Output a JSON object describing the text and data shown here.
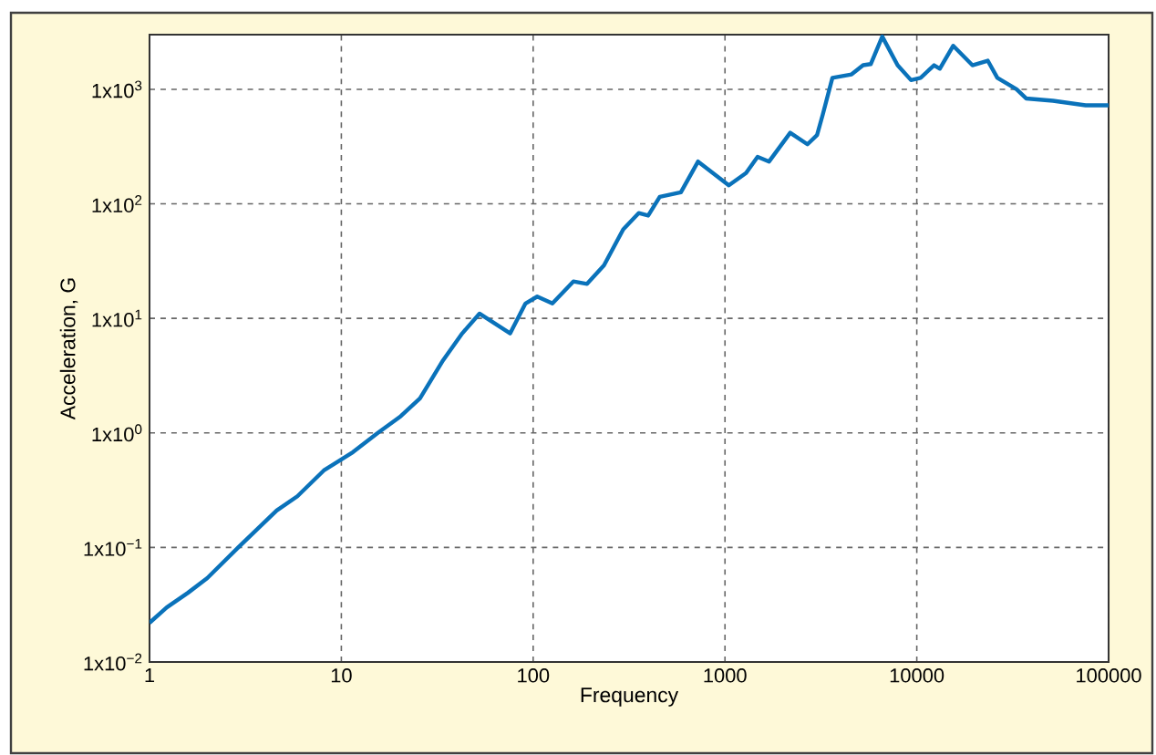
{
  "chart_data": {
    "type": "line",
    "xlabel": "Frequency",
    "ylabel": "Acceleration, G",
    "log": "xy",
    "grid": true,
    "line_style": "solid",
    "marker": "none",
    "xlim": [
      1,
      100000
    ],
    "ylim": [
      0.01,
      3000
    ],
    "xticks": [
      1,
      10,
      100,
      1000,
      10000,
      100000
    ],
    "yticks": [
      {
        "value": 0.01,
        "label": "1x10$^{−2}$"
      },
      {
        "value": 0.1,
        "label": "1x10$^{−1}$"
      },
      {
        "value": 1,
        "label": "1x10$^{0}$"
      },
      {
        "value": 10,
        "label": "1x10$^{1}$"
      },
      {
        "value": 100,
        "label": "1x10$^{2}$"
      },
      {
        "value": 1000,
        "label": "1x10$^{3}$"
      }
    ],
    "series": [
      {
        "color": "#0a72ba",
        "x": [
          1,
          1.23,
          1.58,
          2,
          2.9,
          4.6,
          5.9,
          8.1,
          11.5,
          15.5,
          20.4,
          25.7,
          33.9,
          42.7,
          52.5,
          75.9,
          91.2,
          105,
          126,
          162,
          191,
          234,
          295,
          355,
          398,
          457,
          589,
          724,
          1047,
          1288,
          1479,
          1698,
          2188,
          2692,
          3020,
          3236,
          3631,
          4571,
          5248,
          5754,
          6607,
          7943,
          9333,
          10471,
          12303,
          13183,
          15488,
          19498,
          23442,
          26303,
          33113,
          37154,
          51286,
          75858,
          100000
        ],
        "values": [
          0.022,
          0.03,
          0.04,
          0.054,
          0.1,
          0.21,
          0.28,
          0.47,
          0.68,
          1.0,
          1.4,
          2.0,
          4.3,
          7.4,
          11,
          7.4,
          13.5,
          15.5,
          13.5,
          21,
          20,
          29,
          60,
          83,
          79,
          115,
          126,
          234,
          145,
          186,
          257,
          234,
          417,
          331,
          398,
          603,
          1259,
          1349,
          1622,
          1660,
          2884,
          1622,
          1202,
          1259,
          1622,
          1514,
          2399,
          1622,
          1778,
          1259,
          1000,
          832,
          794,
          724,
          724
        ]
      }
    ]
  }
}
